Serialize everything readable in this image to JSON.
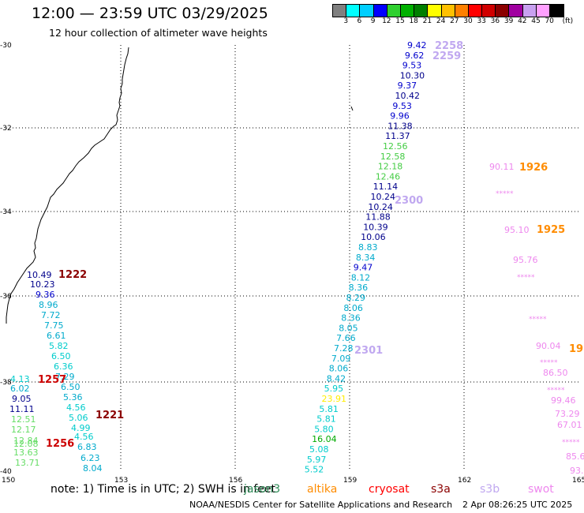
{
  "header": {
    "title": "12:00 — 23:59 UTC 03/29/2025",
    "subtitle": "12 hour collection of altimeter wave heights"
  },
  "colorbar": {
    "unit": "(ft)",
    "ticks": [
      "3",
      "6",
      "9",
      "12",
      "15",
      "18",
      "21",
      "24",
      "27",
      "30",
      "33",
      "36",
      "39",
      "42",
      "45",
      "70"
    ],
    "colors": [
      "#808080",
      "#00ffff",
      "#00cfff",
      "#0000ff",
      "#2fd02f",
      "#00b000",
      "#007f00",
      "#ffff00",
      "#ffc000",
      "#ff8000",
      "#ff0000",
      "#d00000",
      "#8b0000",
      "#a000a0",
      "#c8a0f0",
      "#ffa0ff",
      "#000000"
    ]
  },
  "map": {
    "lon_ticks": [
      "150",
      "153",
      "156",
      "159",
      "162",
      "165"
    ],
    "lat_ticks": [
      "-30",
      "-32",
      "-34",
      "-36",
      "-38",
      "-40"
    ]
  },
  "tracks": {
    "track_1222": {
      "color": "#00008b",
      "pass_label": "1222",
      "pass_color": "#8b0000",
      "values": [
        {
          "t": "10.49",
          "c": "#00008b"
        },
        {
          "t": "10.23",
          "c": "#00008b"
        },
        {
          "t": "9.36",
          "c": "#0000cd"
        },
        {
          "t": "8.96",
          "c": "#00aacc"
        },
        {
          "t": "7.72",
          "c": "#00aacc"
        },
        {
          "t": "7.75",
          "c": "#00aacc"
        },
        {
          "t": "6.61",
          "c": "#00aacc"
        },
        {
          "t": "5.82",
          "c": "#00cccc"
        },
        {
          "t": "6.50",
          "c": "#00cccc"
        },
        {
          "t": "6.36",
          "c": "#00cccc"
        },
        {
          "t": "7.29",
          "c": "#00aacc"
        },
        {
          "t": "6.50",
          "c": "#00aacc"
        },
        {
          "t": "5.36",
          "c": "#00aacc"
        },
        {
          "t": "4.56",
          "c": "#00cccc"
        },
        {
          "t": "5.06",
          "c": "#00cccc"
        },
        {
          "t": "4.99",
          "c": "#00cccc"
        },
        {
          "t": "4.56",
          "c": "#00cccc"
        },
        {
          "t": "6.83",
          "c": "#00aacc"
        },
        {
          "t": "6.23",
          "c": "#00aacc"
        },
        {
          "t": "8.04",
          "c": "#00aacc"
        }
      ]
    },
    "track_1257": {
      "pass_label": "1257",
      "pass_color": "#cc0000",
      "values": [
        {
          "t": "4.13",
          "c": "#00cccc"
        },
        {
          "t": "6.02",
          "c": "#00aacc"
        },
        {
          "t": "9.05",
          "c": "#00008b"
        },
        {
          "t": "11.11",
          "c": "#00008b"
        },
        {
          "t": "12.51",
          "c": "#66dd66"
        },
        {
          "t": "12.17",
          "c": "#66dd66"
        },
        {
          "t": "12.84",
          "c": "#66dd66"
        },
        {
          "t": "13.63",
          "c": "#66dd66"
        },
        {
          "t": "13.71",
          "c": "#66dd66"
        }
      ]
    },
    "track_1256": {
      "pass_label": "1256",
      "pass_color": "#cc0000",
      "overlap_value": "12.08"
    },
    "track_1221": {
      "pass_label": "1221",
      "pass_color": "#8b0000"
    },
    "track_2258": {
      "pass_label_a": "2258",
      "pass_label_b": "2259",
      "pass_color": "#c0a8f0",
      "values": [
        {
          "t": "9.42",
          "c": "#0000cd"
        },
        {
          "t": "9.62",
          "c": "#0000cd"
        },
        {
          "t": "9.53",
          "c": "#0000cd"
        },
        {
          "t": "10.30",
          "c": "#00008b"
        },
        {
          "t": "9.37",
          "c": "#0000cd"
        },
        {
          "t": "10.42",
          "c": "#00008b"
        },
        {
          "t": "9.53",
          "c": "#0000cd"
        },
        {
          "t": "9.96",
          "c": "#0000cd"
        },
        {
          "t": "11.38",
          "c": "#00008b"
        },
        {
          "t": "11.37",
          "c": "#00008b"
        },
        {
          "t": "12.56",
          "c": "#44cc44"
        },
        {
          "t": "12.58",
          "c": "#44cc44"
        },
        {
          "t": "12.18",
          "c": "#44cc44"
        },
        {
          "t": "12.46",
          "c": "#44cc44"
        },
        {
          "t": "11.14",
          "c": "#00008b"
        },
        {
          "t": "10.24",
          "c": "#00008b"
        },
        {
          "t": "10.24",
          "c": "#00008b"
        },
        {
          "t": "11.88",
          "c": "#00008b"
        },
        {
          "t": "10.39",
          "c": "#00008b"
        },
        {
          "t": "10.06",
          "c": "#00008b"
        },
        {
          "t": "8.83",
          "c": "#00aacc"
        },
        {
          "t": "8.34",
          "c": "#00aacc"
        },
        {
          "t": "9.47",
          "c": "#0000cd"
        },
        {
          "t": "8.12",
          "c": "#00aacc"
        },
        {
          "t": "8.36",
          "c": "#00aacc"
        },
        {
          "t": "8.29",
          "c": "#00aacc"
        },
        {
          "t": "8.06",
          "c": "#00aacc"
        },
        {
          "t": "8.36",
          "c": "#00aacc"
        },
        {
          "t": "8.05",
          "c": "#00aacc"
        },
        {
          "t": "7.66",
          "c": "#00aacc"
        },
        {
          "t": "7.28",
          "c": "#00aacc"
        },
        {
          "t": "7.09",
          "c": "#00aacc"
        },
        {
          "t": "8.06",
          "c": "#00aacc"
        },
        {
          "t": "8.42",
          "c": "#00aacc"
        },
        {
          "t": "5.95",
          "c": "#00cccc"
        },
        {
          "t": "23.91",
          "c": "#ffee00"
        },
        {
          "t": "5.81",
          "c": "#00cccc"
        },
        {
          "t": "5.81",
          "c": "#00cccc"
        },
        {
          "t": "5.80",
          "c": "#00cccc"
        },
        {
          "t": "16.04",
          "c": "#00aa00"
        },
        {
          "t": "5.08",
          "c": "#00cccc"
        },
        {
          "t": "5.97",
          "c": "#00cccc"
        },
        {
          "t": "5.52",
          "c": "#00cccc"
        }
      ]
    },
    "track_2300": {
      "pass_label": "2300",
      "pass_color": "#c0a8f0"
    },
    "track_2301": {
      "pass_label": "2301",
      "pass_color": "#c0a8f0"
    },
    "track_1926": {
      "pass_label_a": "1926",
      "pass_label_b": "1925",
      "pass_label_c": "19",
      "pass_color": "#ff8c00",
      "values": [
        {
          "t": "90.11",
          "c": "#ee88ee"
        },
        {
          "t": "*****",
          "c": "#ee88ee"
        },
        {
          "t": "95.10",
          "c": "#ee88ee"
        },
        {
          "t": "95.76",
          "c": "#ee88ee"
        },
        {
          "t": "*****",
          "c": "#ee88ee"
        },
        {
          "t": "*****",
          "c": "#ee88ee"
        },
        {
          "t": "90.04",
          "c": "#ee88ee"
        },
        {
          "t": "*****",
          "c": "#ee88ee"
        },
        {
          "t": "86.50",
          "c": "#ee88ee"
        },
        {
          "t": "*****",
          "c": "#ee88ee"
        },
        {
          "t": "99.46",
          "c": "#ee88ee"
        },
        {
          "t": "73.29",
          "c": "#ee88ee"
        },
        {
          "t": "67.01",
          "c": "#ee88ee"
        },
        {
          "t": "*****",
          "c": "#ee88ee"
        },
        {
          "t": "85.6",
          "c": "#ee88ee"
        },
        {
          "t": "93.",
          "c": "#ee88ee"
        }
      ]
    }
  },
  "footer": {
    "note": "note: 1) Time is in UTC; 2) SWH is in feet",
    "legend": [
      {
        "label": "jason3",
        "color": "#2e8b57"
      },
      {
        "label": "altika",
        "color": "#ff8c00"
      },
      {
        "label": "cryosat",
        "color": "#ff0000"
      },
      {
        "label": "s3a",
        "color": "#8b0000"
      },
      {
        "label": "s3b",
        "color": "#c0a8f0"
      },
      {
        "label": "swot",
        "color": "#ee88ee"
      }
    ],
    "credits": "NOAA/NESDIS Center for Satellite Applications and Research",
    "timestamp": "2 Apr 08:26:25 UTC 2025"
  }
}
